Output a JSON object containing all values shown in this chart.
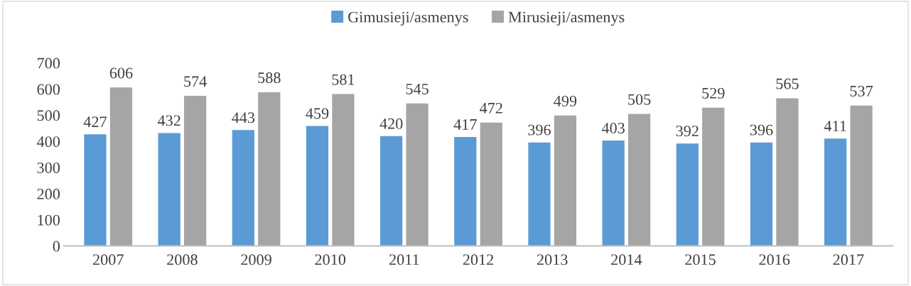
{
  "chart_data": {
    "type": "bar",
    "categories": [
      "2007",
      "2008",
      "2009",
      "2010",
      "2011",
      "2012",
      "2013",
      "2014",
      "2015",
      "2016",
      "2017"
    ],
    "series": [
      {
        "name": "Gimusieji/asmenys",
        "color": "#5b9bd5",
        "values": [
          427,
          432,
          443,
          459,
          420,
          417,
          396,
          403,
          392,
          396,
          411
        ]
      },
      {
        "name": "Mirusieji/asmenys",
        "color": "#a5a5a5",
        "values": [
          606,
          574,
          588,
          581,
          545,
          472,
          499,
          505,
          529,
          565,
          537
        ]
      }
    ],
    "ylim": [
      0,
      700
    ],
    "yticks": [
      0,
      100,
      200,
      300,
      400,
      500,
      600,
      700
    ],
    "data_labels": true,
    "grid": false,
    "legend": "top"
  }
}
